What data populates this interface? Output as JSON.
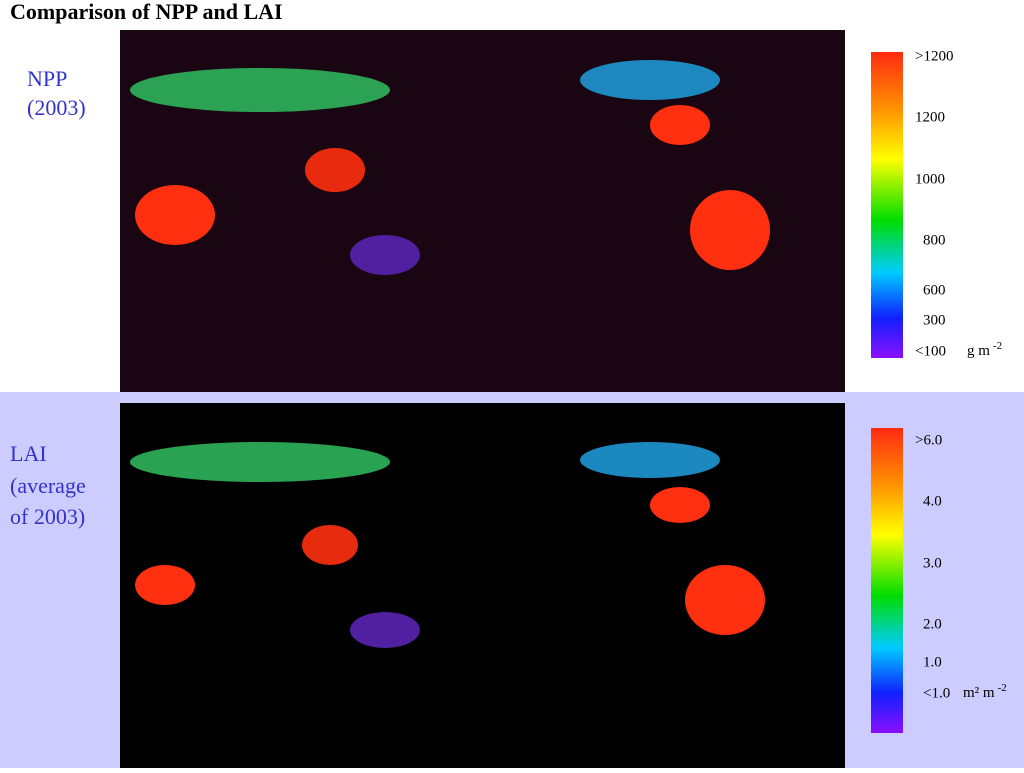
{
  "title": "Comparison of NPP and LAI",
  "panels": [
    {
      "label": [
        "NPP",
        "(2003)"
      ],
      "colorbar": {
        "labels": [
          ">1200",
          "1200",
          "1000",
          "800",
          "600",
          "300",
          "<100"
        ],
        "unit": {
          "base": "g m",
          "sup": "-2"
        }
      }
    },
    {
      "label": [
        "LAI",
        "(average",
        "of 2003)"
      ],
      "colorbar": {
        "labels": [
          ">6.0",
          "4.0",
          "3.0",
          "2.0",
          "1.0",
          "<1.0"
        ],
        "unit": {
          "base": "m² m",
          "sup": "-2"
        }
      }
    }
  ]
}
